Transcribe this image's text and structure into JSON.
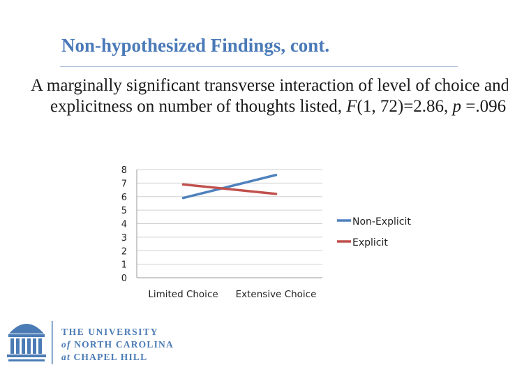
{
  "slide": {
    "title": "Non-hypothesized Findings, cont.",
    "body": {
      "prefix": "A marginally significant transverse interaction of level of choice and explicitness on number of thoughts listed, ",
      "f_symbol": "F",
      "f_args": "(1, 72)=2.86, ",
      "p_symbol": "p",
      "p_value": " =.096"
    }
  },
  "chart_data": {
    "type": "line",
    "categories": [
      "Limited Choice",
      "Extensive Choice"
    ],
    "series": [
      {
        "name": "Non-Explicit",
        "values": [
          5.9,
          7.6
        ],
        "color": "#4f81bd"
      },
      {
        "name": "Explicit",
        "values": [
          6.9,
          6.2
        ],
        "color": "#c0504d"
      }
    ],
    "ylim": [
      0,
      8
    ],
    "yticks": [
      "0",
      "1",
      "2",
      "3",
      "4",
      "5",
      "6",
      "7",
      "8"
    ],
    "grid": true,
    "legend_position": "right"
  },
  "logo": {
    "line1": "THE UNIVERSITY",
    "line2_a": "of",
    "line2_b": "NORTH CAROLINA",
    "line3_a": "at",
    "line3_b": "CHAPEL HILL",
    "color": "#4b7bb5"
  }
}
